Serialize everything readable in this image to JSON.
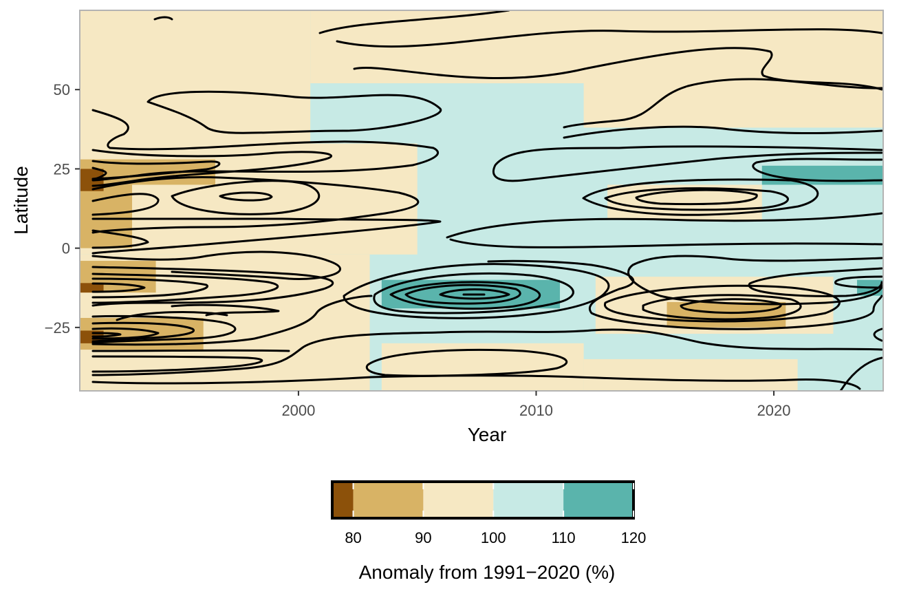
{
  "chart_data": {
    "type": "heatmap",
    "title": "",
    "xlabel": "Year",
    "ylabel": "Latitude",
    "xlim": [
      1990.8,
      2024.6
    ],
    "ylim": [
      -45,
      75
    ],
    "x_ticks": [
      2000,
      2010,
      2020
    ],
    "y_ticks": [
      -25,
      0,
      25,
      50
    ],
    "tick_labels": {
      "x": [
        "2000",
        "2010",
        "2020"
      ],
      "y": [
        "−25",
        "0",
        "25",
        "50"
      ]
    },
    "grid": false,
    "legend": {
      "title": "Anomaly from 1991−2020 (%)",
      "position": "bottom",
      "breaks": [
        80,
        90,
        100,
        110,
        120
      ],
      "labels": [
        "80",
        "90",
        "100",
        "110",
        "120"
      ],
      "bins": [
        {
          "from": 77,
          "to": 80,
          "color": "#8c510a"
        },
        {
          "from": 80,
          "to": 90,
          "color": "#d8b365"
        },
        {
          "from": 90,
          "to": 100,
          "color": "#f6e8c3"
        },
        {
          "from": 100,
          "to": 110,
          "color": "#c7eae5"
        },
        {
          "from": 110,
          "to": 120,
          "color": "#5ab4ac"
        }
      ]
    },
    "background_class": 100,
    "regions": [
      {
        "class": 90,
        "x": [
          1990.8,
          2000.5
        ],
        "y": [
          33,
          75
        ]
      },
      {
        "class": 90,
        "x": [
          2000.5,
          2024.6
        ],
        "y": [
          52,
          75
        ]
      },
      {
        "class": 90,
        "x": [
          2012,
          2024.6
        ],
        "y": [
          38,
          52
        ]
      },
      {
        "class": 90,
        "x": [
          1990.8,
          2005
        ],
        "y": [
          -2,
          33
        ]
      },
      {
        "class": 90,
        "x": [
          1990.8,
          2003
        ],
        "y": [
          -45,
          -2
        ]
      },
      {
        "class": 90,
        "x": [
          2013,
          2019.5
        ],
        "y": [
          9,
          20
        ]
      },
      {
        "class": 90,
        "x": [
          2012.5,
          2022.5
        ],
        "y": [
          -27,
          -9
        ]
      },
      {
        "class": 90,
        "x": [
          2003.5,
          2012
        ],
        "y": [
          -45,
          -30
        ]
      },
      {
        "class": 90,
        "x": [
          2012,
          2021
        ],
        "y": [
          -45,
          -35
        ]
      },
      {
        "class": 80,
        "x": [
          1990.8,
          1996.5
        ],
        "y": [
          20,
          28
        ]
      },
      {
        "class": 80,
        "x": [
          1990.8,
          1993
        ],
        "y": [
          0,
          20
        ]
      },
      {
        "class": 80,
        "x": [
          1990.8,
          1994
        ],
        "y": [
          -14,
          -4
        ]
      },
      {
        "class": 80,
        "x": [
          1990.8,
          1996
        ],
        "y": [
          -32,
          -22
        ]
      },
      {
        "class": 80,
        "x": [
          2015.5,
          2020.5
        ],
        "y": [
          -25,
          -17
        ]
      },
      {
        "class": 77,
        "x": [
          1990.8,
          1991.8
        ],
        "y": [
          18,
          25
        ]
      },
      {
        "class": 77,
        "x": [
          1990.8,
          1991.8
        ],
        "y": [
          -14,
          -11
        ]
      },
      {
        "class": 77,
        "x": [
          1990.8,
          1991.8
        ],
        "y": [
          -30,
          -26
        ]
      },
      {
        "class": 110,
        "x": [
          2003.5,
          2011
        ],
        "y": [
          -19,
          -10
        ]
      },
      {
        "class": 110,
        "x": [
          2019.5,
          2024.6
        ],
        "y": [
          20,
          26
        ]
      },
      {
        "class": 110,
        "x": [
          2023.5,
          2024.6
        ],
        "y": [
          -15,
          -10
        ]
      }
    ]
  }
}
